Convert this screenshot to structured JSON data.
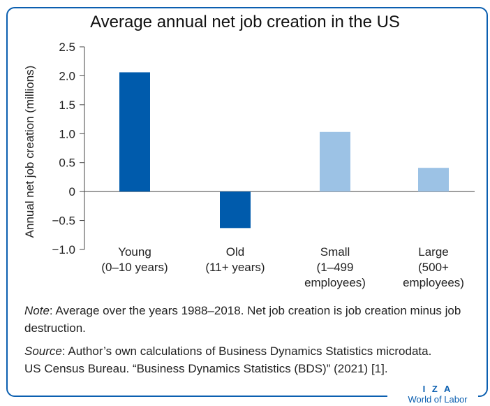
{
  "chart_data": {
    "type": "bar",
    "title": "Average annual net job creation in the US",
    "ylabel": "Annual net job creation (millions)",
    "xlabel": "",
    "ylim": [
      -1.0,
      2.5
    ],
    "yticks": [
      "2.5",
      "2.0",
      "1.5",
      "1.0",
      "0.5",
      "0",
      "−0.5",
      "−1.0"
    ],
    "ytick_values": [
      2.5,
      2.0,
      1.5,
      1.0,
      0.5,
      0,
      -0.5,
      -1.0
    ],
    "categories": [
      {
        "lines": [
          "Young",
          "(0–10 years)"
        ]
      },
      {
        "lines": [
          "Old",
          "(11+ years)"
        ]
      },
      {
        "lines": [
          "Small",
          "(1–499",
          "employees)"
        ]
      },
      {
        "lines": [
          "Large",
          "(500+",
          "employees)"
        ]
      }
    ],
    "values": [
      2.06,
      -0.63,
      1.03,
      0.41
    ],
    "colors": [
      "#005bac",
      "#005bac",
      "#9cc2e5",
      "#9cc2e5"
    ],
    "grid": false
  },
  "note": {
    "label": "Note",
    "text": ": Average over the years 1988–2018. Net job creation is job creation minus job destruction."
  },
  "source": {
    "label": "Source",
    "line1": ": Author’s own calculations of Business Dynamics Statistics microdata.",
    "line2": "US Census Bureau. “Business Dynamics Statistics (BDS)” (2021) [1]."
  },
  "brand": {
    "line1": "I Z A",
    "line2": "World of Labor"
  },
  "colors": {
    "frame": "#0b5fb0",
    "brand": "#0b5fb0"
  }
}
